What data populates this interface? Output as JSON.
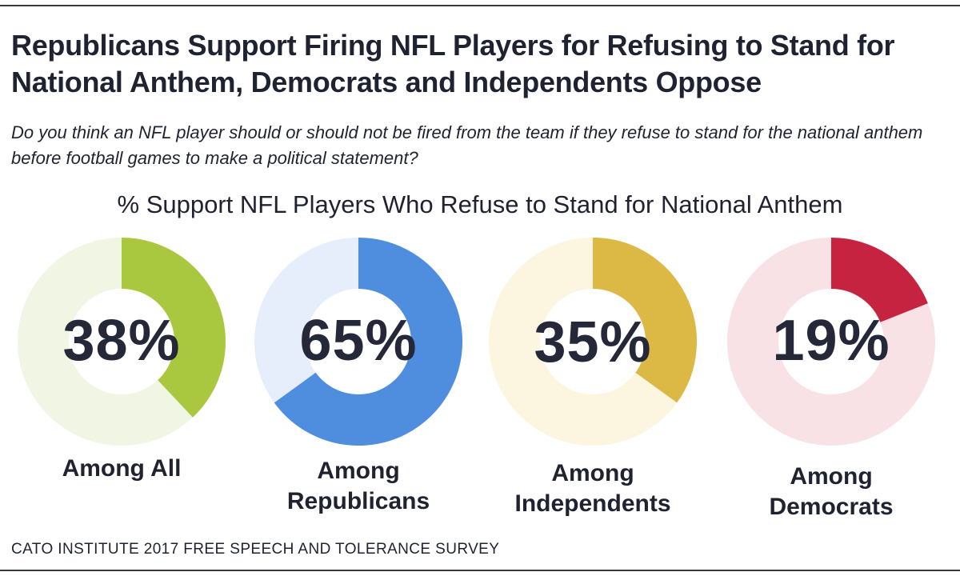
{
  "title": "Republicans Support Firing NFL Players for Refusing to Stand for National Anthem, Democrats and Independents Oppose",
  "question": "Do you think an NFL player should or should not be fired from the team if they refuse to stand for the national anthem before football games to make a political statement?",
  "source": "CATO INSTITUTE 2017 FREE SPEECH AND TOLERANCE SURVEY",
  "chart_data": {
    "type": "donut",
    "title": "% Support NFL Players Who Refuse to Stand for National Anthem",
    "unit": "%",
    "groups": [
      {
        "label_line1": "Among All",
        "label_line2": "",
        "value": 38,
        "display": "38%",
        "color": "#a9c83f",
        "track_color": "#f1f6e4"
      },
      {
        "label_line1": "Among",
        "label_line2": "Republicans",
        "value": 65,
        "display": "65%",
        "color": "#4f8edf",
        "track_color": "#e6eefb"
      },
      {
        "label_line1": "Among",
        "label_line2": "Independents",
        "value": 35,
        "display": "35%",
        "color": "#dcb845",
        "track_color": "#fcf5e0"
      },
      {
        "label_line1": "Among",
        "label_line2": "Democrats",
        "value": 19,
        "display": "19%",
        "color": "#c52340",
        "track_color": "#f8e2e6"
      }
    ]
  }
}
